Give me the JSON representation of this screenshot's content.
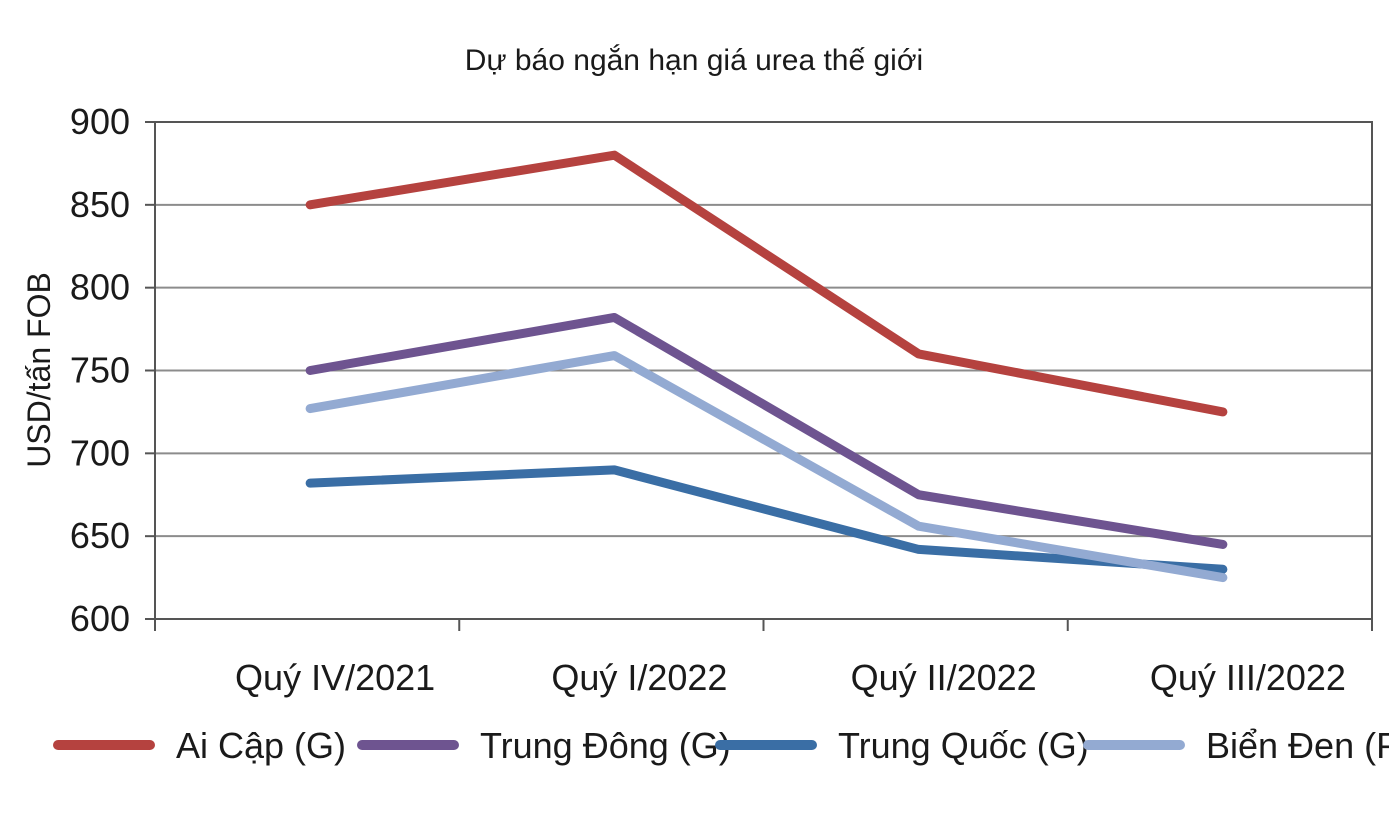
{
  "chart_data": {
    "type": "line",
    "title": "Dự báo ngắn hạn giá urea thế giới",
    "xlabel": "",
    "ylabel": "USD/tấn FOB",
    "ylim": [
      600,
      900
    ],
    "yticks": [
      "900",
      "850",
      "800",
      "750",
      "700",
      "650",
      "600"
    ],
    "categories": [
      "Quý IV/2021",
      "Quý I/2022",
      "Quý II/2022",
      "Quý III/2022"
    ],
    "grid": true,
    "legend_position": "bottom",
    "series": [
      {
        "name": "Ai Cập (G)",
        "color": "#b5423f",
        "values": [
          850,
          880,
          760,
          725
        ]
      },
      {
        "name": "Trung Đông (G)",
        "color": "#6e5490",
        "values": [
          750,
          782,
          675,
          645
        ]
      },
      {
        "name": "Trung Quốc (G)",
        "color": "#3a6ea5",
        "values": [
          682,
          690,
          642,
          630
        ]
      },
      {
        "name": "Biển Đen (P)",
        "color": "#93aad2",
        "values": [
          727,
          759,
          656,
          625
        ]
      }
    ]
  }
}
